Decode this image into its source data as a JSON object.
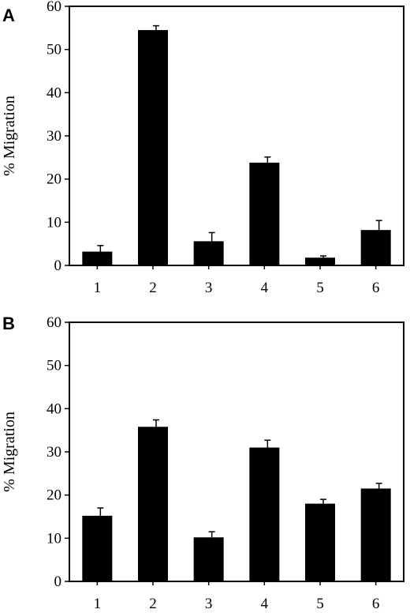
{
  "chart_data": [
    {
      "type": "bar",
      "panel": "A",
      "categories": [
        "1",
        "2",
        "3",
        "4",
        "5",
        "6"
      ],
      "values": [
        3.2,
        54.5,
        5.6,
        23.8,
        1.8,
        8.2
      ],
      "errors": [
        1.4,
        1.0,
        2.0,
        1.3,
        0.4,
        2.2
      ],
      "ylabel": "% Migration",
      "ylim": [
        0,
        60
      ],
      "yticks": [
        0,
        10,
        20,
        30,
        40,
        50,
        60
      ],
      "grid": false
    },
    {
      "type": "bar",
      "panel": "B",
      "categories": [
        "1",
        "2",
        "3",
        "4",
        "5",
        "6"
      ],
      "values": [
        15.2,
        35.8,
        10.2,
        31.0,
        18.0,
        21.5
      ],
      "errors": [
        1.8,
        1.6,
        1.3,
        1.7,
        1.0,
        1.2
      ],
      "ylabel": "% Migration",
      "ylim": [
        0,
        60
      ],
      "yticks": [
        0,
        10,
        20,
        30,
        40,
        50,
        60
      ],
      "grid": false
    }
  ]
}
